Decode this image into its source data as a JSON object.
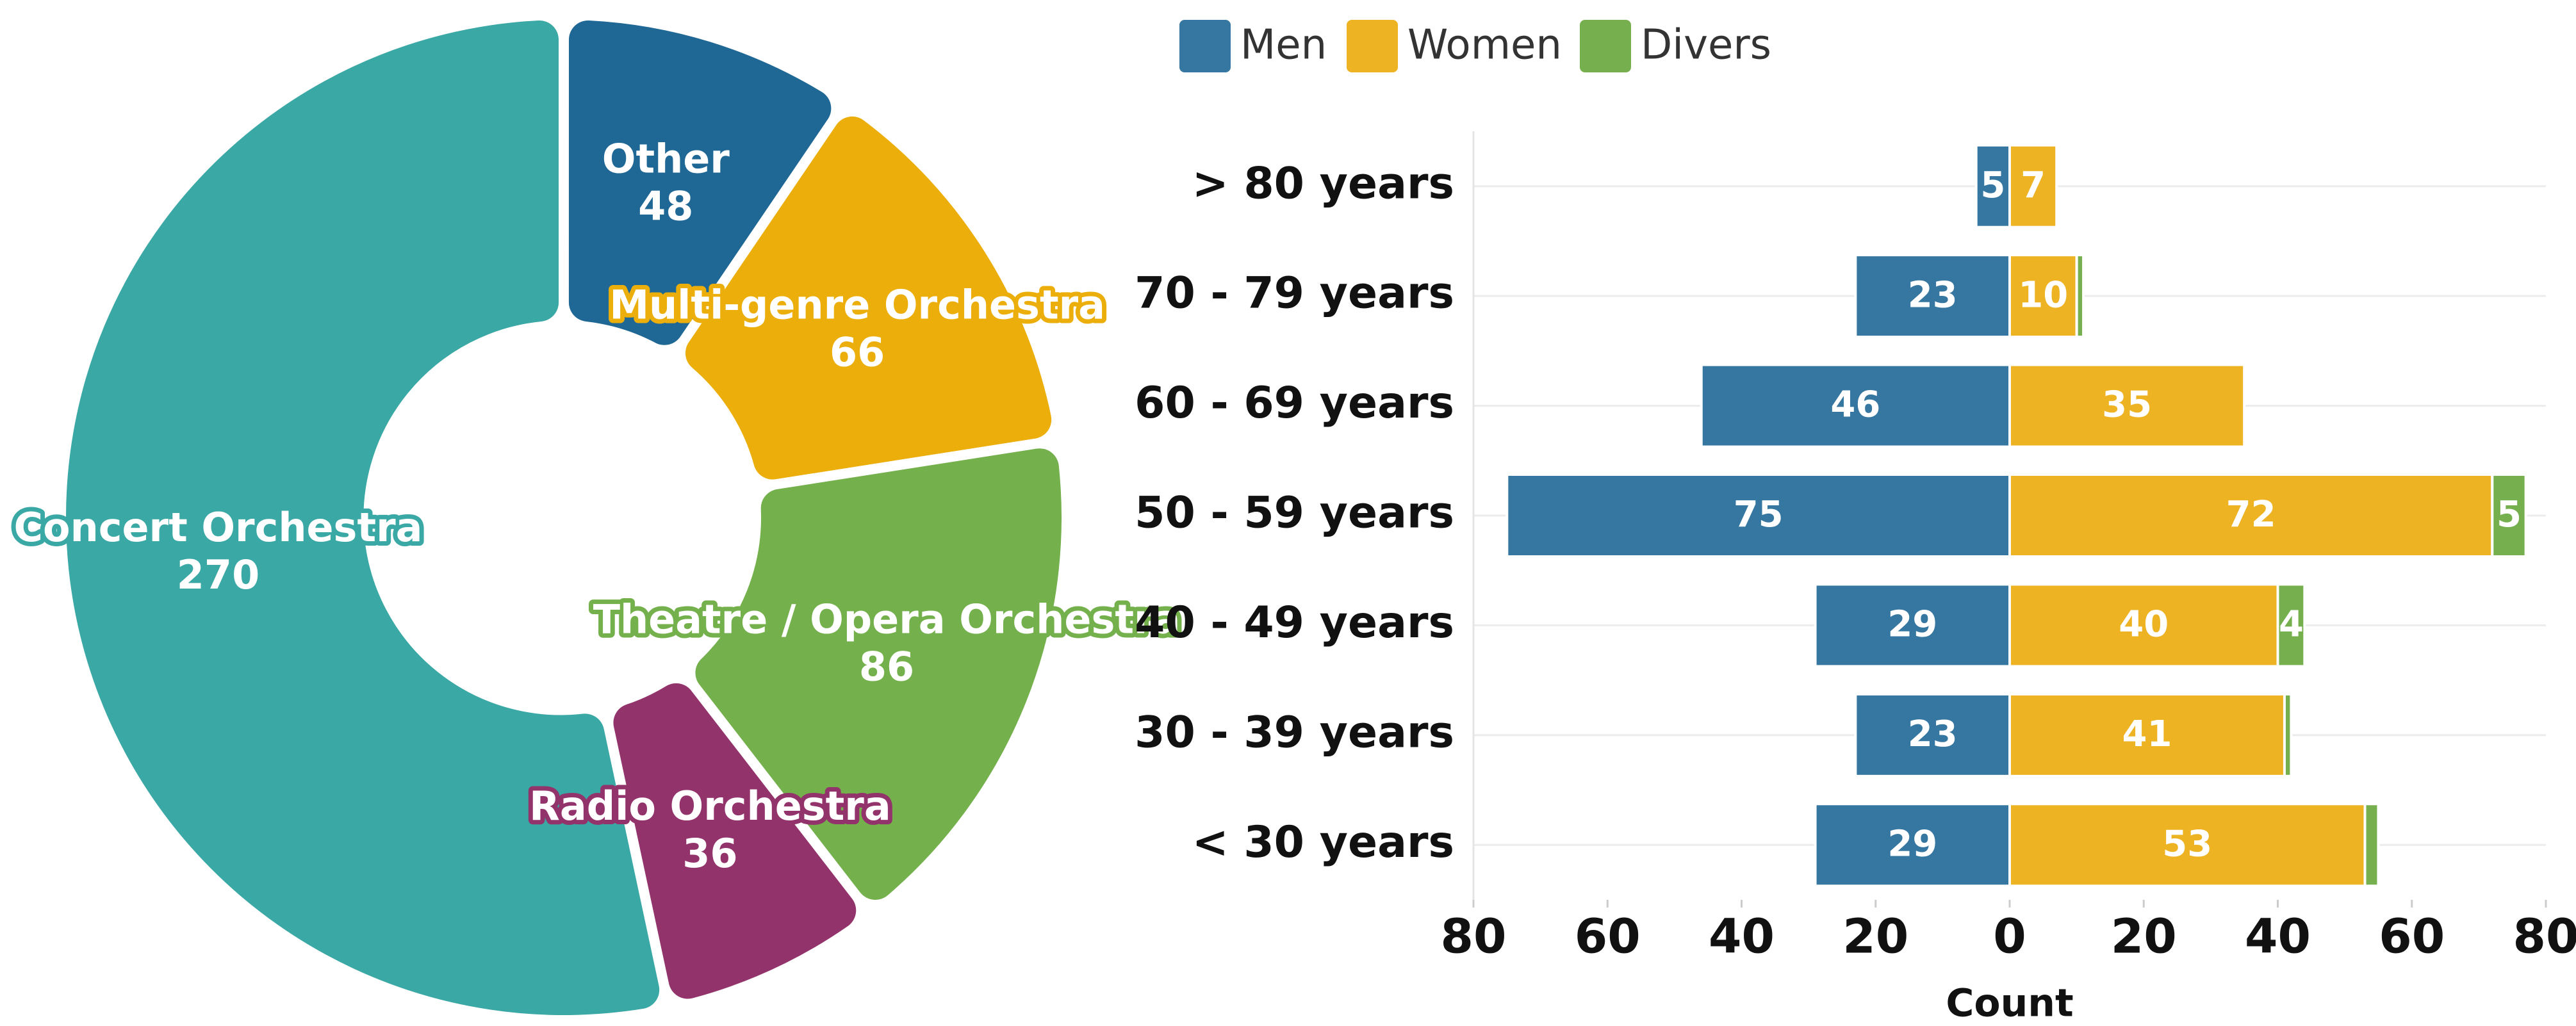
{
  "chart_data": [
    {
      "type": "pie",
      "categories": [
        "Other",
        "Multi-genre Orchestra",
        "Theatre / Opera Orchestra",
        "Radio Orchestra",
        "Concert Orchestra"
      ],
      "values": [
        48,
        66,
        86,
        36,
        270
      ],
      "colors": [
        "#1f6895",
        "#ebae0b",
        "#74b04c",
        "#93336b",
        "#3aa8a5"
      ]
    },
    {
      "type": "bar",
      "orientation": "horizontal",
      "stacked": true,
      "categories": [
        "> 80 years",
        "70 - 79 years",
        "60 - 69 years",
        "50 - 59 years",
        "40 - 49 years",
        "30 - 39 years",
        "< 30 years"
      ],
      "series": [
        {
          "name": "Men",
          "color": "#3577a0",
          "values": [
            -5,
            -23,
            -46,
            -75,
            -29,
            -23,
            -29
          ],
          "value_labels": [
            "5",
            "23",
            "46",
            "75",
            "29",
            "23",
            "29"
          ]
        },
        {
          "name": "Women",
          "color": "#edb323",
          "values": [
            7,
            10,
            35,
            72,
            40,
            41,
            53
          ]
        },
        {
          "name": "Divers",
          "color": "#76b04e",
          "values": [
            0,
            1,
            0,
            5,
            4,
            1,
            2
          ],
          "value_labels": [
            null,
            null,
            null,
            "5",
            "4",
            null,
            null
          ]
        }
      ],
      "xlabel": "Count",
      "xlim": [
        -80,
        80
      ],
      "xticks": [
        {
          "value": -80,
          "label": "80"
        },
        {
          "value": -60,
          "label": "60"
        },
        {
          "value": -40,
          "label": "40"
        },
        {
          "value": -20,
          "label": "20"
        },
        0,
        20,
        40,
        60,
        80
      ],
      "grid": true,
      "legend": "top"
    }
  ]
}
